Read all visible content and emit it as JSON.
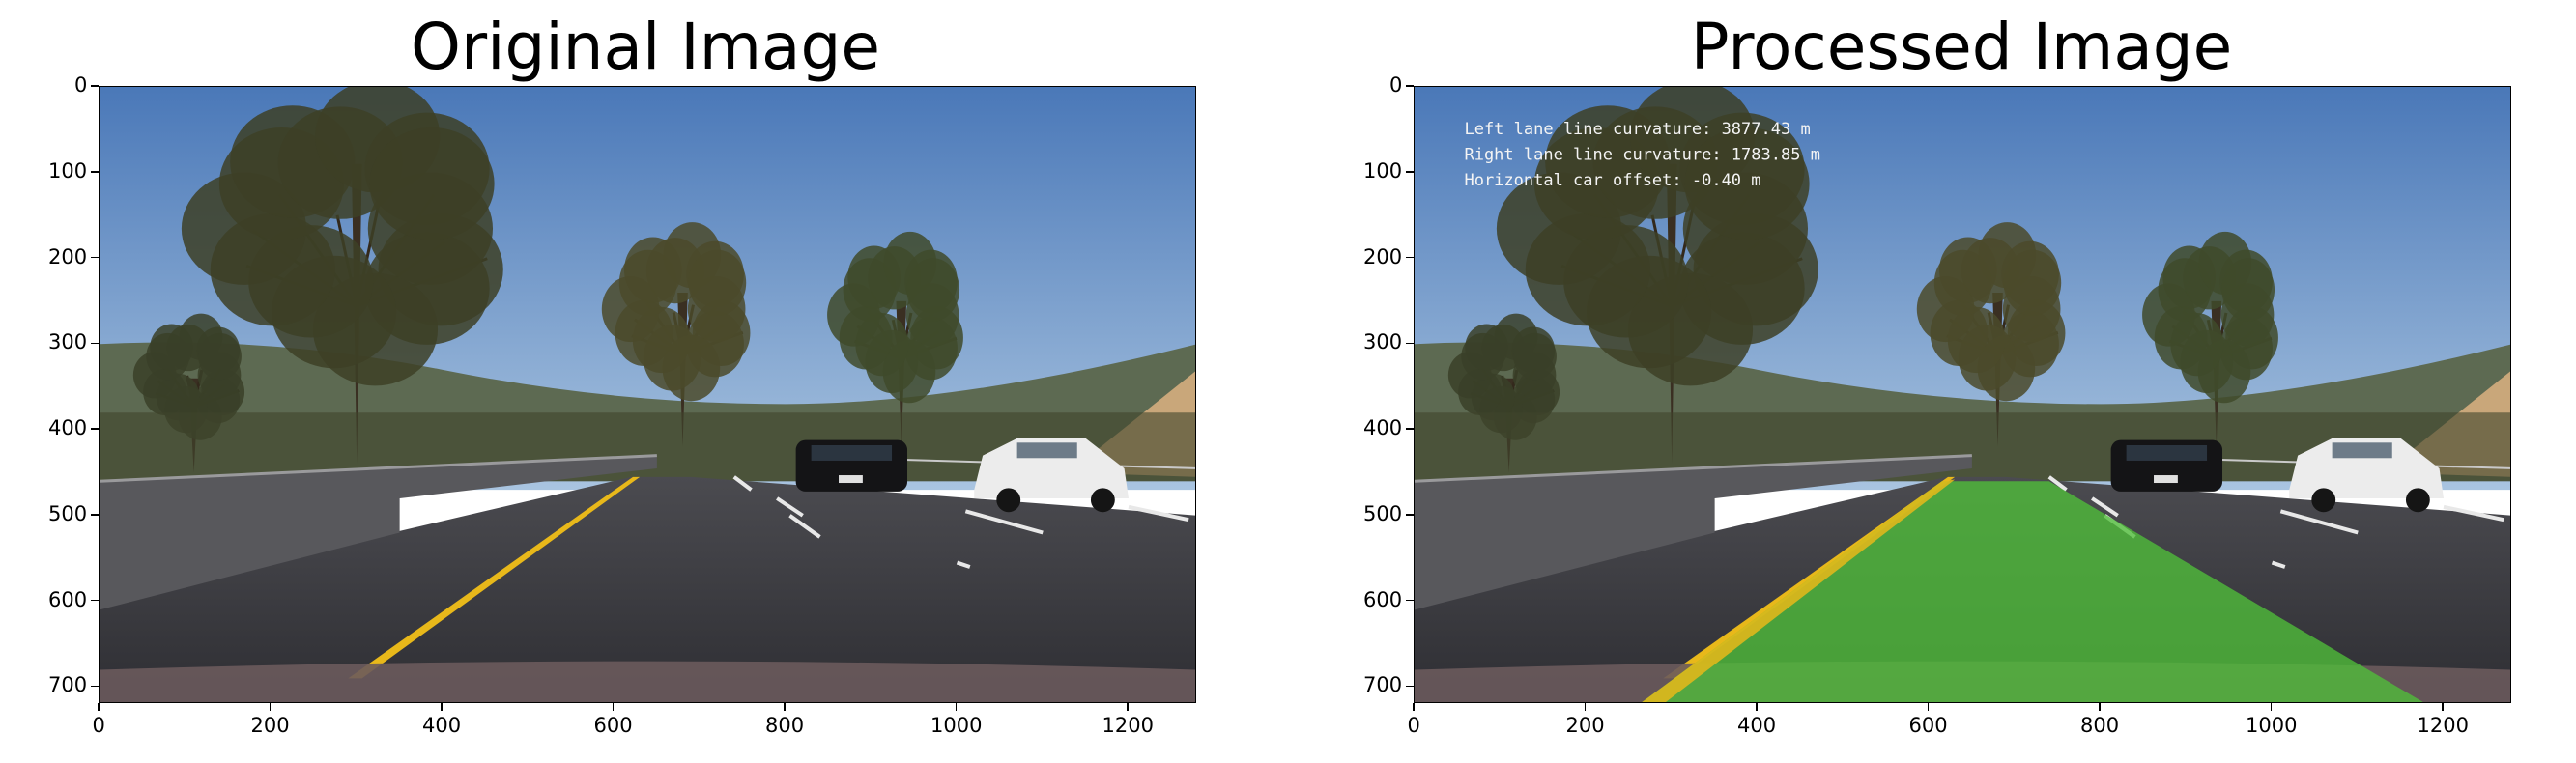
{
  "figure": {
    "panels": [
      {
        "title": "Original Image",
        "image": "highway-road-scene-with-yellow-lane-line-and-cars",
        "lane_overlay": false,
        "overlay_text": []
      },
      {
        "title": "Processed Image",
        "image": "highway-road-scene-with-green-lane-area-overlay",
        "lane_overlay": true,
        "overlay_color": "#4fbf3a",
        "overlay_text": [
          "Left lane line curvature: 3877.43 m",
          "Right lane line curvature: 1783.85 m",
          "Horizontal car offset: -0.40 m"
        ]
      }
    ],
    "x_ticks": [
      "0",
      "200",
      "400",
      "600",
      "800",
      "1000",
      "1200"
    ],
    "y_ticks": [
      "0",
      "100",
      "200",
      "300",
      "400",
      "500",
      "600",
      "700"
    ],
    "x_range": [
      0,
      1280
    ],
    "y_range": [
      720,
      0
    ]
  },
  "colors": {
    "sky": "#5f8ec8",
    "road": "#3b3b3f",
    "yellow_line": "#e8b81a",
    "foliage": "#4a4a2c"
  }
}
